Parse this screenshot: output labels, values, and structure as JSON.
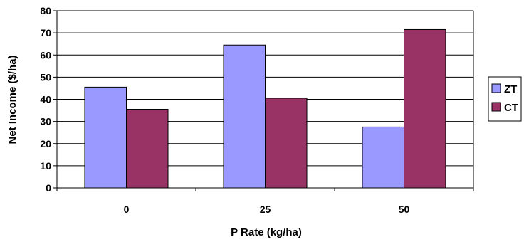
{
  "chart_data": {
    "type": "bar",
    "categories": [
      "0",
      "25",
      "50"
    ],
    "series": [
      {
        "name": "ZT",
        "values": [
          45.5,
          64.5,
          27.5
        ],
        "color": "#9999ff"
      },
      {
        "name": "CT",
        "values": [
          35.5,
          40.5,
          71.5
        ],
        "color": "#993366"
      }
    ],
    "xlabel": "P Rate (kg/ha)",
    "ylabel": "Net Income ($/ha)",
    "ylim": [
      0,
      80
    ],
    "yticks": [
      0,
      10,
      20,
      30,
      40,
      50,
      60,
      70,
      80
    ],
    "grid": true,
    "legend_position": "right"
  }
}
